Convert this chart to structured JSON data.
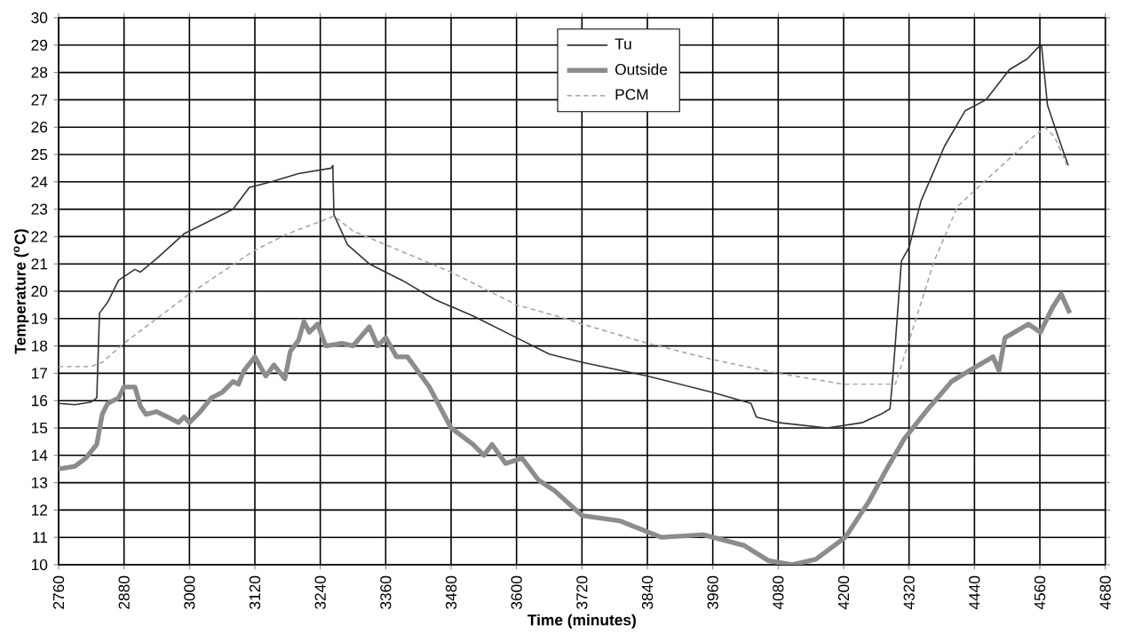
{
  "chart_data": {
    "type": "line",
    "xlabel": "Time (minutes)",
    "ylabel": "Temperature ($^{o}$C)",
    "xlim": [
      2760,
      4680
    ],
    "xticks": [
      2760,
      2880,
      3000,
      3120,
      3240,
      3360,
      3480,
      3600,
      3720,
      3840,
      3960,
      4080,
      4200,
      4320,
      4440,
      4560,
      4680
    ],
    "ylim": [
      10,
      30
    ],
    "yticks": [
      10,
      11,
      12,
      13,
      14,
      15,
      16,
      17,
      18,
      19,
      20,
      21,
      22,
      23,
      24,
      25,
      26,
      27,
      28,
      29,
      30
    ],
    "grid": true,
    "legend": "top",
    "marker": "none",
    "series": [
      {
        "name": "Tu",
        "color": "#333333",
        "line_style": "solid",
        "x": [
          2760,
          2790,
          2820,
          2830,
          2835,
          2850,
          2870,
          2900,
          2910,
          2940,
          2990,
          3030,
          3080,
          3110,
          3150,
          3200,
          3260,
          3263,
          3265,
          3290,
          3330,
          3390,
          3450,
          3520,
          3600,
          3660,
          3720,
          3840,
          3960,
          4030,
          4040,
          4080,
          4170,
          4235,
          4268,
          4285,
          4290,
          4306,
          4320,
          4342,
          4385,
          4423,
          4461,
          4504,
          4537,
          4556,
          4563,
          4574,
          4596,
          4612
        ],
        "values": [
          15.9,
          15.85,
          15.95,
          16.1,
          19.2,
          19.6,
          20.4,
          20.8,
          20.7,
          21.2,
          22.1,
          22.5,
          23.0,
          23.8,
          24.0,
          24.3,
          24.5,
          24.6,
          22.8,
          21.7,
          21.0,
          20.4,
          19.7,
          19.1,
          18.3,
          17.7,
          17.4,
          16.9,
          16.3,
          15.9,
          15.4,
          15.2,
          15.0,
          15.2,
          15.5,
          15.7,
          16.8,
          21.1,
          21.6,
          23.3,
          25.3,
          26.6,
          27.0,
          28.1,
          28.5,
          28.9,
          29.0,
          26.8,
          25.5,
          24.6
        ]
      },
      {
        "name": "Outside",
        "color": "#8c8c8c",
        "line_style": "solid",
        "x": [
          2760,
          2790,
          2810,
          2830,
          2840,
          2850,
          2870,
          2880,
          2900,
          2910,
          2920,
          2940,
          2960,
          2980,
          2990,
          3000,
          3020,
          3040,
          3060,
          3080,
          3090,
          3100,
          3120,
          3140,
          3155,
          3175,
          3185,
          3200,
          3210,
          3220,
          3235,
          3250,
          3280,
          3300,
          3330,
          3345,
          3360,
          3380,
          3400,
          3440,
          3480,
          3520,
          3540,
          3555,
          3580,
          3610,
          3640,
          3670,
          3720,
          3790,
          3866,
          3942,
          4018,
          4062,
          4105,
          4149,
          4203,
          4246,
          4279,
          4311,
          4355,
          4398,
          4431,
          4474,
          4485,
          4496,
          4539,
          4561,
          4583,
          4599,
          4615
        ],
        "values": [
          13.5,
          13.6,
          13.9,
          14.4,
          15.5,
          15.9,
          16.1,
          16.5,
          16.5,
          15.8,
          15.5,
          15.6,
          15.4,
          15.2,
          15.4,
          15.2,
          15.6,
          16.1,
          16.3,
          16.7,
          16.6,
          17.1,
          17.6,
          16.9,
          17.3,
          16.8,
          17.8,
          18.2,
          18.9,
          18.5,
          18.8,
          18.0,
          18.1,
          18.0,
          18.7,
          18.0,
          18.3,
          17.6,
          17.6,
          16.5,
          15.0,
          14.4,
          14.0,
          14.4,
          13.7,
          13.9,
          13.1,
          12.7,
          11.8,
          11.6,
          11.0,
          11.1,
          10.7,
          10.15,
          10.0,
          10.2,
          11.0,
          12.3,
          13.5,
          14.6,
          15.7,
          16.7,
          17.1,
          17.6,
          17.1,
          18.3,
          18.8,
          18.5,
          19.4,
          19.9,
          19.2
        ]
      },
      {
        "name": "PCM",
        "color": "#a6a6a6",
        "line_style": "dashed",
        "x": [
          2760,
          2820,
          2840,
          2880,
          2940,
          3000,
          3060,
          3120,
          3180,
          3240,
          3265,
          3300,
          3360,
          3480,
          3600,
          3690,
          3720,
          3840,
          3960,
          4080,
          4200,
          4290,
          4295,
          4333,
          4366,
          4409,
          4452,
          4496,
          4539,
          4570,
          4588,
          4610
        ],
        "values": [
          17.25,
          17.25,
          17.4,
          18.1,
          19.0,
          19.9,
          20.7,
          21.5,
          22.1,
          22.55,
          22.75,
          22.2,
          21.7,
          20.7,
          19.5,
          19.0,
          18.8,
          18.1,
          17.5,
          17.0,
          16.6,
          16.6,
          16.6,
          19.0,
          21.1,
          23.1,
          23.9,
          24.7,
          25.5,
          26.0,
          25.6,
          24.6
        ]
      }
    ]
  }
}
